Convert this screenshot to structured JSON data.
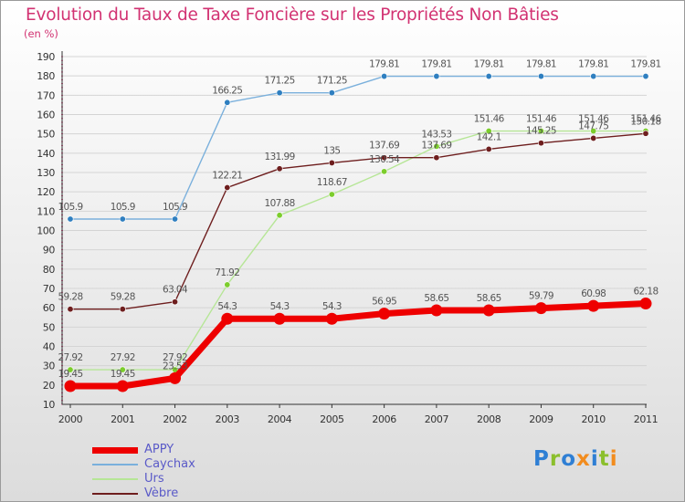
{
  "title": "Evolution du Taux de Taxe Foncière sur les Propriétés Non Bâties",
  "unit_label": "(en %)",
  "brand": {
    "text": "Proxiti",
    "letters": [
      {
        "ch": "P",
        "color": "#2f7fd4"
      },
      {
        "ch": "r",
        "color": "#8bbf2c"
      },
      {
        "ch": "o",
        "color": "#2f7fd4"
      },
      {
        "ch": "x",
        "color": "#f28c1e"
      },
      {
        "ch": "i",
        "color": "#2f7fd4"
      },
      {
        "ch": "t",
        "color": "#8bbf2c"
      },
      {
        "ch": "i",
        "color": "#f28c1e"
      }
    ]
  },
  "chart_data": {
    "type": "line",
    "title": "Evolution du Taux de Taxe Foncière sur les Propriétés Non Bâties",
    "ylabel": "(en %)",
    "xlabel": "",
    "x": [
      "2000",
      "2001",
      "2002",
      "2003",
      "2004",
      "2005",
      "2006",
      "2007",
      "2008",
      "2009",
      "2010",
      "2011"
    ],
    "ylim": [
      10,
      190
    ],
    "yticks": [
      10,
      20,
      30,
      40,
      50,
      60,
      70,
      80,
      90,
      100,
      110,
      120,
      130,
      140,
      150,
      160,
      170,
      180,
      190
    ],
    "legend_position": "bottom-left",
    "series": [
      {
        "name": "APPY",
        "color": "#ee0000",
        "width": "thick",
        "values": [
          19.45,
          19.45,
          23.53,
          54.3,
          54.3,
          54.3,
          56.95,
          58.65,
          58.65,
          59.79,
          60.98,
          62.18
        ],
        "labels": [
          "19.45",
          "19.45",
          "23.53",
          "54.3",
          "54.3",
          "54.3",
          "56.95",
          "58.65",
          "58.65",
          "59.79",
          "60.98",
          "62.18"
        ]
      },
      {
        "name": "Caychax",
        "color": "#7ab0dc",
        "width": "thin",
        "values": [
          105.9,
          105.9,
          105.9,
          166.25,
          171.25,
          171.25,
          179.81,
          179.81,
          179.81,
          179.81,
          179.81,
          179.81
        ],
        "labels": [
          "105.9",
          "105.9",
          "105.9",
          "166.25",
          "171.25",
          "171.25",
          "179.81",
          "179.81",
          "179.81",
          "179.81",
          "179.81",
          "179.81"
        ]
      },
      {
        "name": "Urs",
        "color": "#b6e696",
        "width": "thin",
        "values": [
          27.92,
          27.92,
          27.92,
          71.92,
          107.88,
          118.67,
          130.54,
          143.53,
          151.46,
          151.46,
          151.46,
          151.46
        ],
        "labels": [
          "27.92",
          "27.92",
          "27.92",
          "71.92",
          "107.88",
          "118.67",
          "130.54",
          "143.53",
          "151.46",
          "151.46",
          "151.46",
          "151.46"
        ]
      },
      {
        "name": "Vèbre",
        "color": "#6e1e1e",
        "width": "thin",
        "values": [
          59.28,
          59.28,
          63.04,
          122.21,
          131.99,
          135,
          137.69,
          137.69,
          142.1,
          145.25,
          147.75,
          150.18
        ],
        "labels": [
          "59.28",
          "59.28",
          "63.04",
          "122.21",
          "131.99",
          "135",
          "137.69",
          "137.69",
          "142.1",
          "145.25",
          "147.75",
          "150.18"
        ]
      }
    ]
  }
}
